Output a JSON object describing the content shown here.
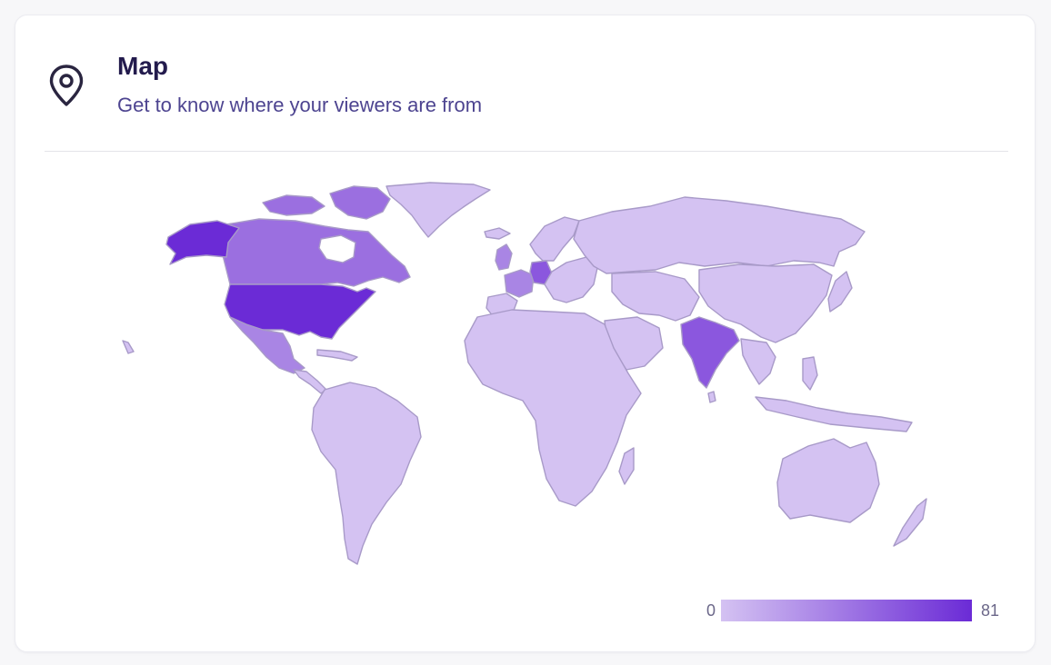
{
  "header": {
    "title": "Map",
    "subtitle": "Get to know where your viewers are from",
    "icon": "map-pin-icon"
  },
  "legend": {
    "min_label": "0",
    "max_label": "81"
  },
  "colors": {
    "low": "#d4c2f2",
    "high": "#6b2bd6",
    "border": "#a89ac8"
  },
  "map_data": {
    "type": "choropleth",
    "scale_min": 0,
    "scale_max": 81,
    "highlighted_countries": [
      {
        "country": "United States",
        "level": 0.98
      },
      {
        "country": "Canada",
        "level": 0.55
      },
      {
        "country": "Mexico",
        "level": 0.45
      },
      {
        "country": "India",
        "level": 0.62
      },
      {
        "country": "France",
        "level": 0.45
      },
      {
        "country": "Germany",
        "level": 0.55
      },
      {
        "country": "United Kingdom",
        "level": 0.45
      }
    ]
  }
}
